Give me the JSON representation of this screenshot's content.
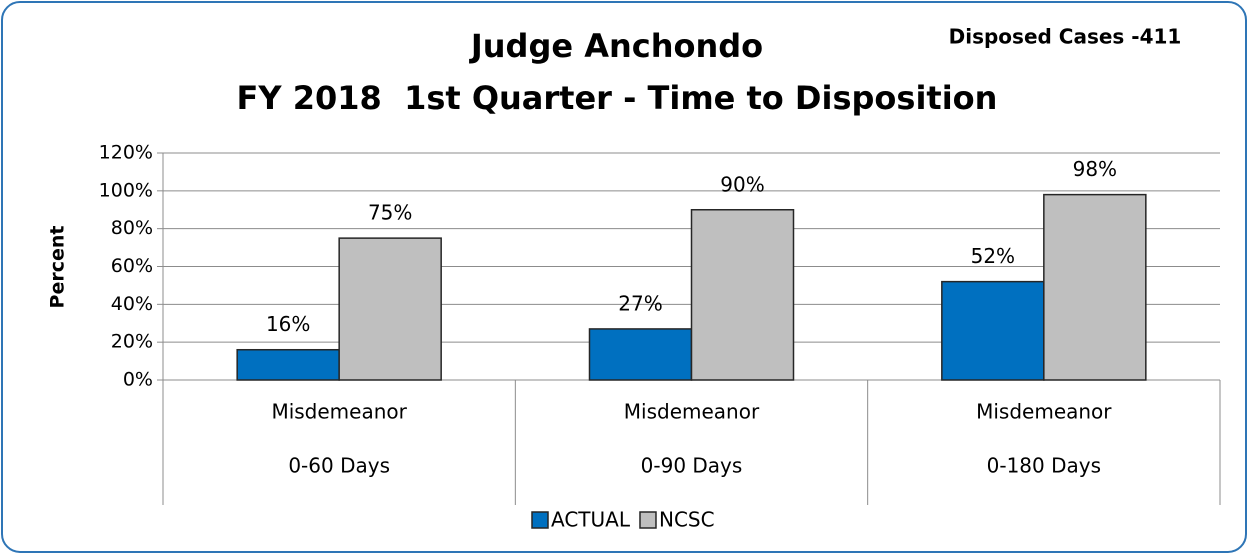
{
  "chart_data": {
    "type": "bar",
    "title": [
      "Judge Anchondo",
      "FY 2018  1st Quarter - Time to Disposition"
    ],
    "annotation": "Disposed Cases -411",
    "ylabel": "Percent",
    "categories": [
      [
        "Misdemeanor",
        "0-60 Days"
      ],
      [
        "Misdemeanor",
        "0-90 Days"
      ],
      [
        "Misdemeanor",
        "0-180 Days"
      ]
    ],
    "series": [
      {
        "name": "ACTUAL",
        "color": "#0070c0",
        "values": [
          16,
          27,
          52
        ],
        "value_labels": [
          "16%",
          "27%",
          "52%"
        ]
      },
      {
        "name": "NCSC",
        "color": "#bfbfbf",
        "values": [
          75,
          90,
          98
        ],
        "value_labels": [
          "75%",
          "90%",
          "98%"
        ]
      }
    ],
    "ylim": [
      0,
      120
    ],
    "yticks": [
      {
        "value": 0,
        "label": "0%"
      },
      {
        "value": 20,
        "label": "20%"
      },
      {
        "value": 40,
        "label": "40%"
      },
      {
        "value": 60,
        "label": "60%"
      },
      {
        "value": 80,
        "label": "80%"
      },
      {
        "value": 100,
        "label": "100%"
      },
      {
        "value": 120,
        "label": "120%"
      }
    ],
    "grid": true,
    "legend": "bottom"
  }
}
